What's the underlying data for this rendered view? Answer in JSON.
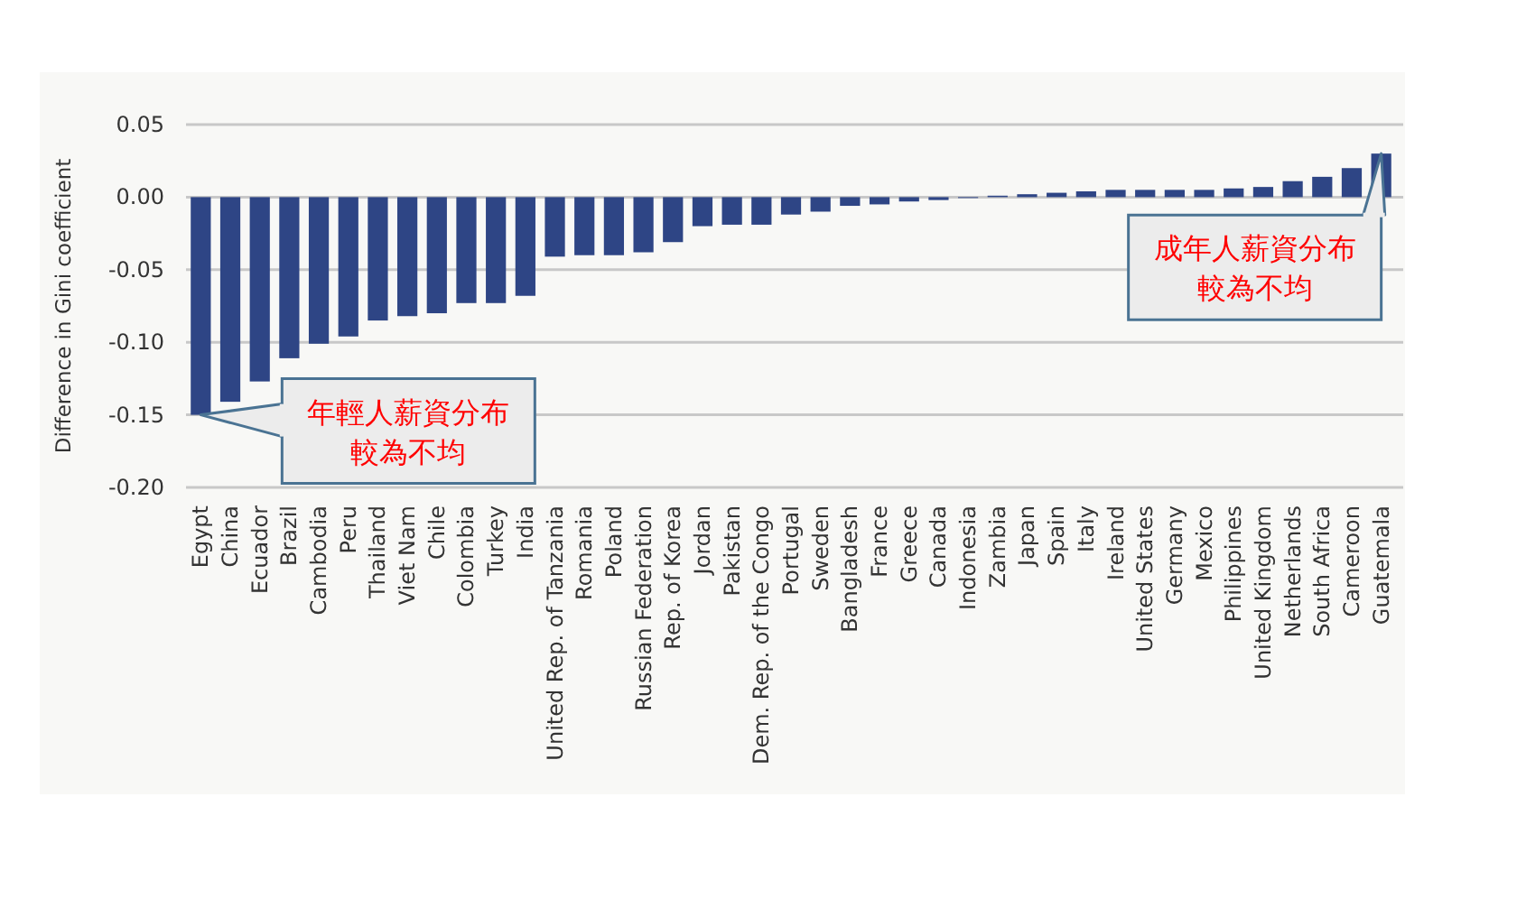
{
  "chart_data": {
    "type": "bar",
    "ylabel": "Difference in Gini coefficient",
    "categories": [
      "Egypt",
      "China",
      "Ecuador",
      "Brazil",
      "Cambodia",
      "Peru",
      "Thailand",
      "Viet Nam",
      "Chile",
      "Colombia",
      "Turkey",
      "India",
      "United Rep. of Tanzania",
      "Romania",
      "Poland",
      "Russian Federation",
      "Rep. of Korea",
      "Jordan",
      "Pakistan",
      "Dem. Rep. of the Congo",
      "Portugal",
      "Sweden",
      "Bangladesh",
      "France",
      "Greece",
      "Canada",
      "Indonesia",
      "Zambia",
      "Japan",
      "Spain",
      "Italy",
      "Ireland",
      "United States",
      "Germany",
      "Mexico",
      "Philippines",
      "United Kingdom",
      "Netherlands",
      "South Africa",
      "Cameroon",
      "Guatemala"
    ],
    "values": [
      -0.15,
      -0.141,
      -0.127,
      -0.111,
      -0.101,
      -0.096,
      -0.085,
      -0.082,
      -0.08,
      -0.073,
      -0.073,
      -0.068,
      -0.041,
      -0.04,
      -0.04,
      -0.038,
      -0.031,
      -0.02,
      -0.019,
      -0.019,
      -0.012,
      -0.01,
      -0.006,
      -0.005,
      -0.003,
      -0.002,
      0.0,
      0.001,
      0.002,
      0.003,
      0.004,
      0.005,
      0.005,
      0.005,
      0.005,
      0.006,
      0.007,
      0.011,
      0.014,
      0.02,
      0.03
    ],
    "color": "#2e4585",
    "ylim": [
      -0.2,
      0.05
    ],
    "yticks": [
      {
        "value": -0.2,
        "label": "-0.20"
      },
      {
        "value": -0.15,
        "label": "-0.15"
      },
      {
        "value": -0.1,
        "label": "-0.10"
      },
      {
        "value": -0.05,
        "label": "-0.05"
      },
      {
        "value": 0,
        "label": "0.00"
      },
      {
        "value": 0.05,
        "label": "0.05"
      }
    ],
    "grid": "y",
    "annotations": [
      "年輕人薪資分布較為不均",
      "成年人薪資分布較為不均"
    ]
  }
}
